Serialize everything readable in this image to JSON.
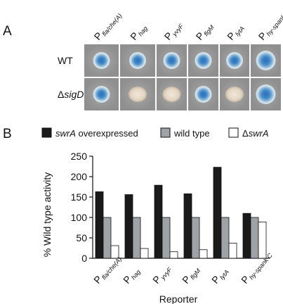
{
  "panel_a": {
    "letter": "A",
    "reporter_prefix": "P",
    "columns": [
      "fla/che(A)",
      "hag",
      "yvyF",
      "flgM",
      "lytA",
      "hy-spank C"
    ],
    "rows": [
      {
        "label_prefix": "",
        "label": "WT",
        "colonies": [
          "blue",
          "blue",
          "blue",
          "blue",
          "blue",
          "blue"
        ]
      },
      {
        "label_prefix": "Δ",
        "label": "sigD",
        "colonies": [
          "blue",
          "white",
          "white",
          "blue",
          "white",
          "blue"
        ]
      }
    ],
    "colors": {
      "tile_bg": "#9c9c9c",
      "blue_center": "#3f87c9",
      "blue_rim": "#cfe0e8",
      "white_colony": "#e3d6c4"
    }
  },
  "panel_b": {
    "letter": "B",
    "legend": [
      {
        "label_italic": "swrA",
        "label_rest": " overexpressed",
        "color": "#1a1a1a"
      },
      {
        "label_italic": "",
        "label_rest": "wild type",
        "color": "#9ea3a8"
      },
      {
        "label_prefix": "Δ",
        "label_italic": "swrA",
        "label_rest": "",
        "color": "#ffffff"
      }
    ]
  },
  "chart_data": {
    "type": "bar",
    "title": "",
    "xlabel": "Reporter",
    "ylabel": "% Wild type activity",
    "ylim": [
      0,
      250
    ],
    "yticks": [
      0,
      50,
      100,
      150,
      200,
      250
    ],
    "categories": [
      "fla/che(A)",
      "hag",
      "yvyF",
      "flgM",
      "lytA",
      "hy-spank C"
    ],
    "category_prefix": "P",
    "series": [
      {
        "name": "swrA overexpressed",
        "color": "#1a1a1a",
        "values": [
          163,
          156,
          179,
          158,
          223,
          110
        ]
      },
      {
        "name": "wild type",
        "color": "#9ea3a8",
        "values": [
          100,
          100,
          100,
          100,
          100,
          100
        ]
      },
      {
        "name": "ΔswrA",
        "color": "#ffffff",
        "values": [
          31,
          24,
          16,
          21,
          37,
          89
        ]
      }
    ]
  }
}
